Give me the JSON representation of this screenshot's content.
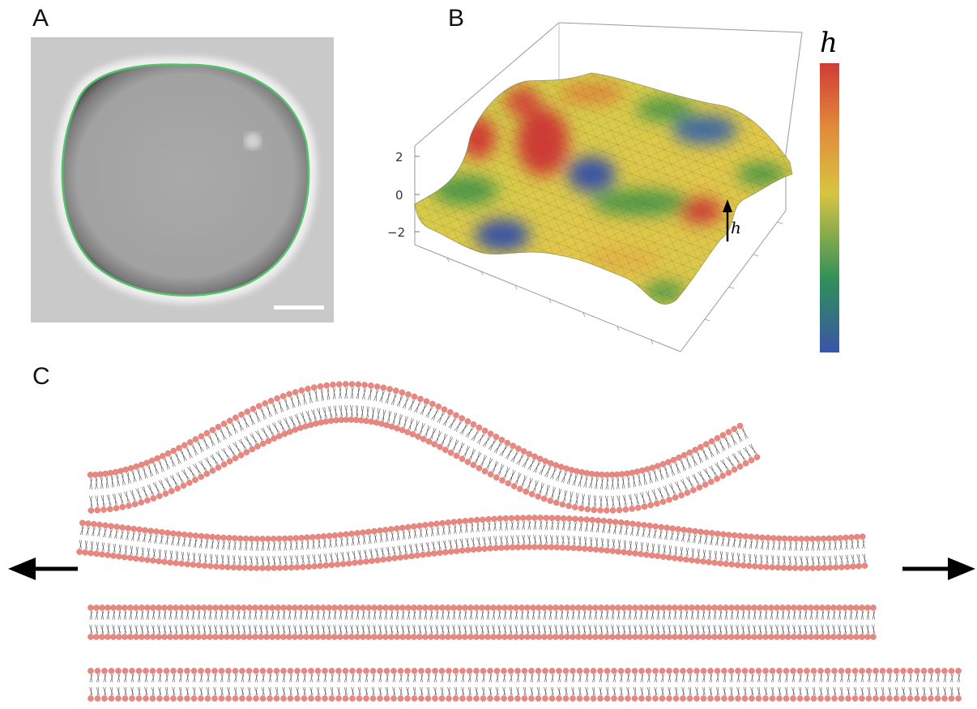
{
  "panels": {
    "a": {
      "label": "A"
    },
    "b": {
      "label": "B",
      "z_ticks": [
        "2",
        "0",
        "−2"
      ],
      "arrow_label": "h",
      "colorbar_label": "h"
    },
    "c": {
      "label": "C"
    }
  },
  "colors": {
    "vesicle_contour": "#55c36a",
    "lipid_head": "#e88880",
    "lipid_tail": "#444444",
    "colormap": [
      "#3b55a6",
      "#2f8f5a",
      "#d8c441",
      "#e08a3a",
      "#d13b36"
    ]
  }
}
